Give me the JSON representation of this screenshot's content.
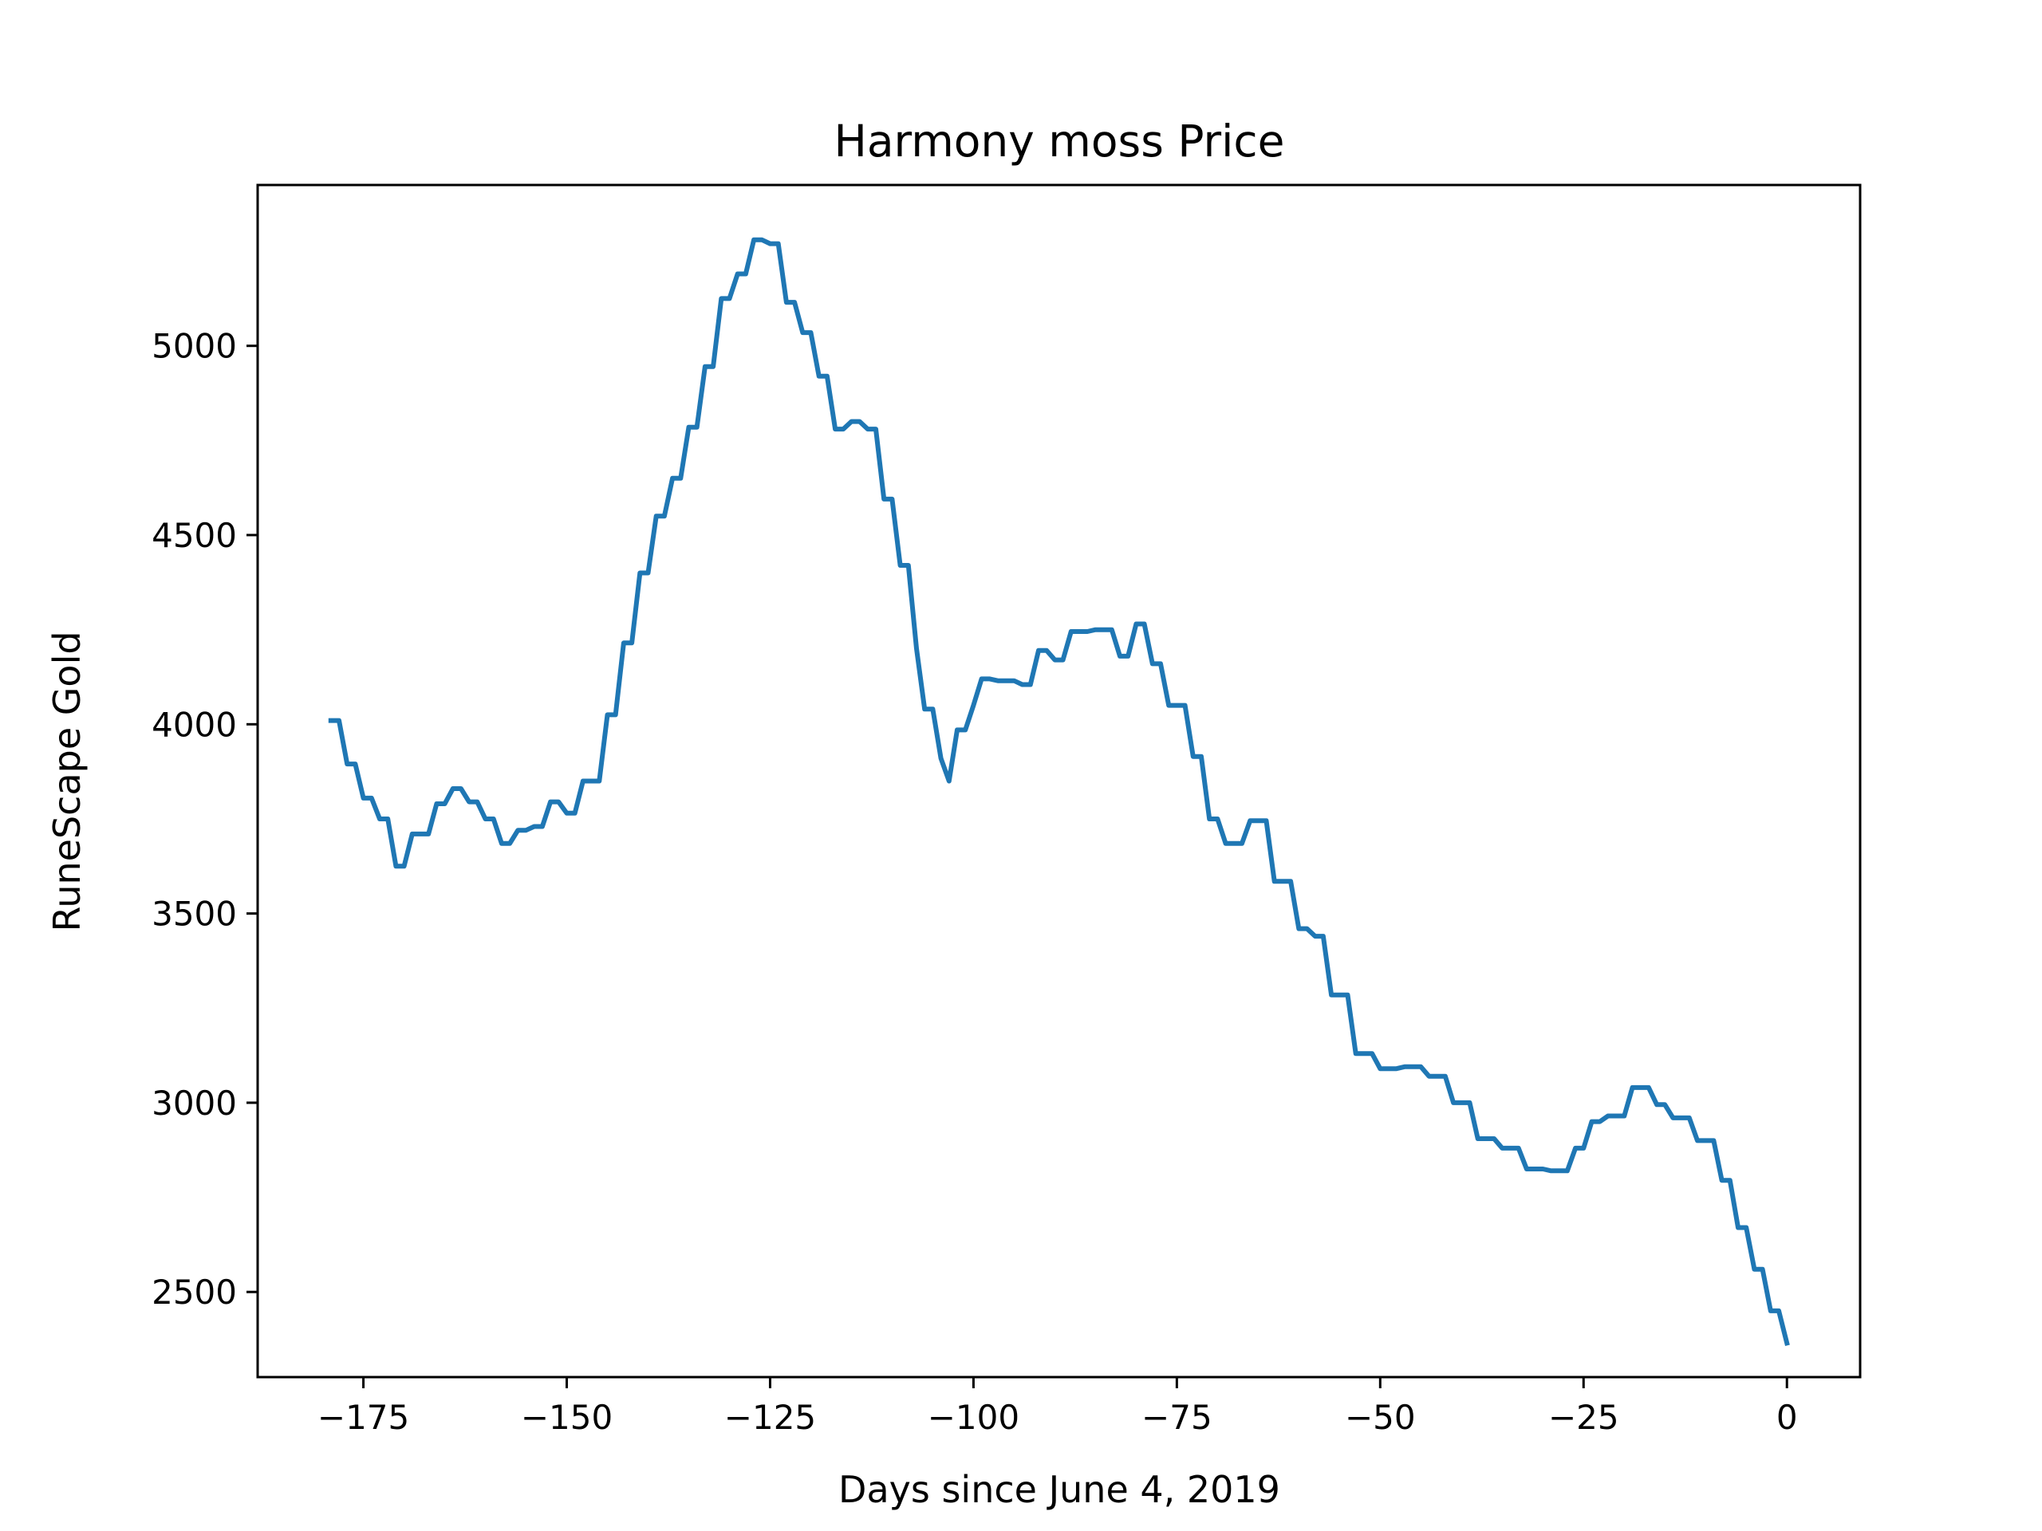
{
  "chart_data": {
    "type": "line",
    "title": "Harmony moss Price",
    "xlabel": "Days since June 4, 2019",
    "ylabel": "RuneScape Gold",
    "xlim": [
      -188,
      9
    ],
    "ylim": [
      2275,
      5425
    ],
    "x_ticks": [
      -175,
      -150,
      -125,
      -100,
      -75,
      -50,
      -25,
      0
    ],
    "x_tick_labels": [
      "−175",
      "−150",
      "−125",
      "−100",
      "−75",
      "−50",
      "−25",
      "0"
    ],
    "y_ticks": [
      2500,
      3000,
      3500,
      4000,
      4500,
      5000
    ],
    "y_tick_labels": [
      "2500",
      "3000",
      "3500",
      "4000",
      "4500",
      "5000"
    ],
    "grid": false,
    "colors": {
      "line": "#1f77b4",
      "axes": "#000000",
      "background": "#ffffff"
    },
    "series": [
      {
        "x": [
          -179,
          -178,
          -177,
          -176,
          -175,
          -174,
          -173,
          -172,
          -171,
          -170,
          -169,
          -168,
          -167,
          -166,
          -165,
          -164,
          -163,
          -162,
          -161,
          -160,
          -159,
          -158,
          -157,
          -156,
          -155,
          -154,
          -153,
          -152,
          -151,
          -150,
          -149,
          -148,
          -147,
          -146,
          -145,
          -144,
          -143,
          -142,
          -141,
          -140,
          -139,
          -138,
          -137,
          -136,
          -135,
          -134,
          -133,
          -132,
          -131,
          -130,
          -129,
          -128,
          -127,
          -126,
          -125,
          -124,
          -123,
          -122,
          -121,
          -120,
          -119,
          -118,
          -117,
          -116,
          -115,
          -114,
          -113,
          -112,
          -111,
          -110,
          -109,
          -108,
          -107,
          -106,
          -105,
          -104,
          -103,
          -102,
          -101,
          -100,
          -99,
          -98,
          -97,
          -96,
          -95,
          -94,
          -93,
          -92,
          -91,
          -90,
          -89,
          -88,
          -87,
          -86,
          -85,
          -84,
          -83,
          -82,
          -81,
          -80,
          -79,
          -78,
          -77,
          -76,
          -75,
          -74,
          -73,
          -72,
          -71,
          -70,
          -69,
          -68,
          -67,
          -66,
          -65,
          -64,
          -63,
          -62,
          -61,
          -60,
          -59,
          -58,
          -57,
          -56,
          -55,
          -54,
          -53,
          -52,
          -51,
          -50,
          -49,
          -48,
          -47,
          -46,
          -45,
          -44,
          -43,
          -42,
          -41,
          -40,
          -39,
          -38,
          -37,
          -36,
          -35,
          -34,
          -33,
          -32,
          -31,
          -30,
          -29,
          -28,
          -27,
          -26,
          -25,
          -24,
          -23,
          -22,
          -21,
          -20,
          -19,
          -18,
          -17,
          -16,
          -15,
          -14,
          -13,
          -12,
          -11,
          -10,
          -9,
          -8,
          -7,
          -6,
          -5,
          -4,
          -3,
          -2,
          -1,
          0
        ],
        "y": [
          4010,
          4010,
          3895,
          3895,
          3805,
          3805,
          3750,
          3750,
          3625,
          3625,
          3710,
          3710,
          3710,
          3790,
          3790,
          3830,
          3830,
          3795,
          3795,
          3750,
          3750,
          3685,
          3685,
          3720,
          3720,
          3730,
          3730,
          3795,
          3795,
          3765,
          3765,
          3850,
          3850,
          3850,
          4025,
          4025,
          4215,
          4215,
          4400,
          4400,
          4550,
          4550,
          4650,
          4650,
          4785,
          4785,
          4945,
          4945,
          5125,
          5125,
          5190,
          5190,
          5280,
          5280,
          5270,
          5270,
          5115,
          5115,
          5035,
          5035,
          4920,
          4920,
          4780,
          4780,
          4800,
          4800,
          4780,
          4780,
          4595,
          4595,
          4420,
          4420,
          4200,
          4040,
          4040,
          3910,
          3850,
          3985,
          3985,
          4050,
          4120,
          4120,
          4115,
          4115,
          4115,
          4105,
          4105,
          4195,
          4195,
          4170,
          4170,
          4245,
          4245,
          4245,
          4250,
          4250,
          4250,
          4180,
          4180,
          4265,
          4265,
          4160,
          4160,
          4050,
          4050,
          4050,
          3915,
          3915,
          3750,
          3750,
          3685,
          3685,
          3685,
          3745,
          3745,
          3745,
          3585,
          3585,
          3585,
          3460,
          3460,
          3440,
          3440,
          3285,
          3285,
          3285,
          3130,
          3130,
          3130,
          3090,
          3090,
          3090,
          3095,
          3095,
          3095,
          3070,
          3070,
          3070,
          3000,
          3000,
          3000,
          2905,
          2905,
          2905,
          2880,
          2880,
          2880,
          2825,
          2825,
          2825,
          2820,
          2820,
          2820,
          2880,
          2880,
          2950,
          2950,
          2965,
          2965,
          2965,
          3040,
          3040,
          3040,
          2995,
          2995,
          2960,
          2960,
          2960,
          2900,
          2900,
          2900,
          2795,
          2795,
          2670,
          2670,
          2560,
          2560,
          2450,
          2450,
          2365
        ]
      }
    ]
  }
}
